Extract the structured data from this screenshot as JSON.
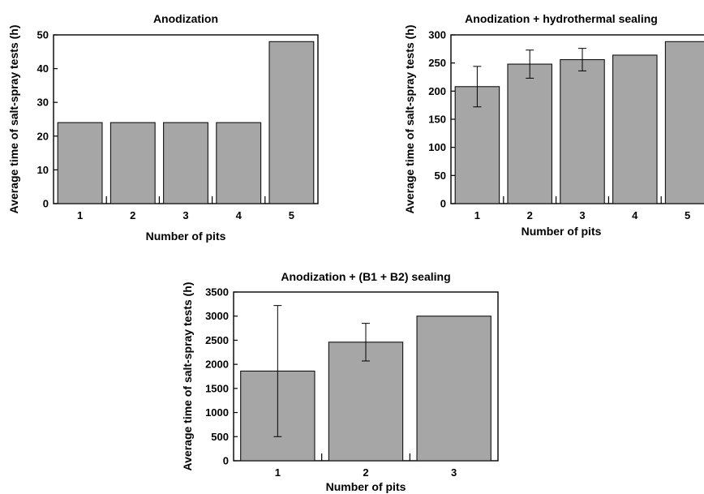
{
  "chart_data": [
    {
      "type": "bar",
      "title": "Anodization",
      "xlabel": "Number of pits",
      "ylabel": "Average time of salt-spray tests (h)",
      "categories": [
        "1",
        "2",
        "3",
        "4",
        "5"
      ],
      "values": [
        24,
        24,
        24,
        24,
        48
      ],
      "error": [
        null,
        null,
        null,
        null,
        null
      ],
      "ylim": [
        0,
        50
      ],
      "yticks": [
        "0",
        "10",
        "20",
        "30",
        "40",
        "50"
      ],
      "bar_color": "#a6a6a6",
      "grid": false
    },
    {
      "type": "bar",
      "title": "Anodization + hydrothermal sealing",
      "xlabel": "Number of pits",
      "ylabel": "Average time of salt-spray tests (h)",
      "categories": [
        "1",
        "2",
        "3",
        "4",
        "5"
      ],
      "values": [
        208,
        248,
        256,
        264,
        288
      ],
      "error": [
        36,
        25,
        20,
        null,
        null
      ],
      "ylim": [
        0,
        300
      ],
      "yticks": [
        "0",
        "50",
        "100",
        "150",
        "200",
        "250",
        "300"
      ],
      "bar_color": "#a6a6a6",
      "grid": false
    },
    {
      "type": "bar",
      "title": "Anodization + (B1 + B2) sealing",
      "xlabel": "Number of pits",
      "ylabel": "Average time of salt-spray tests (h)",
      "categories": [
        "1",
        "2",
        "3"
      ],
      "values": [
        1860,
        2460,
        3000
      ],
      "error": [
        1360,
        390,
        null
      ],
      "ylim": [
        0,
        3500
      ],
      "yticks": [
        "0",
        "500",
        "1000",
        "1500",
        "2000",
        "2500",
        "3000",
        "3500"
      ],
      "bar_color": "#a6a6a6",
      "grid": false
    }
  ]
}
